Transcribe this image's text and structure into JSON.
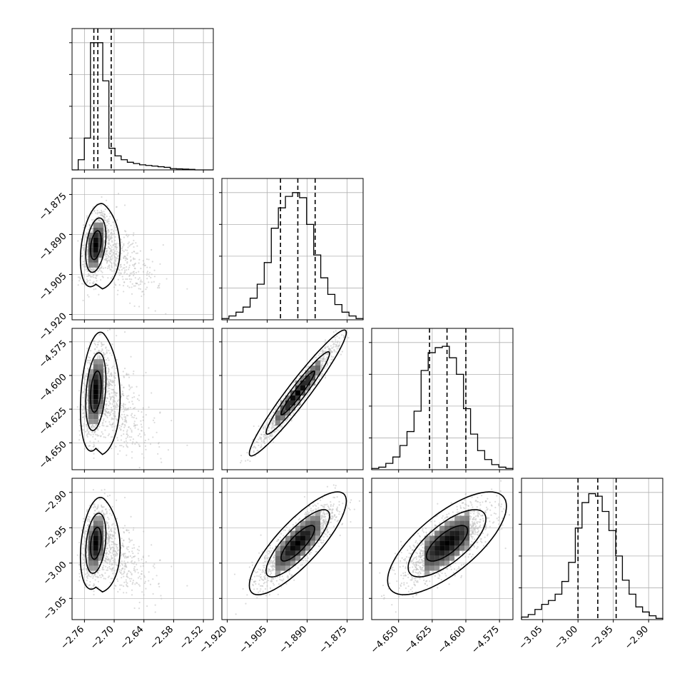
{
  "chart_data": {
    "type": "corner",
    "parameters": [
      {
        "range": [
          -2.785,
          -2.5
        ],
        "ticks": [
          -2.76,
          -2.7,
          -2.64,
          -2.58,
          -2.52
        ],
        "tick_labels": [
          "−2.76",
          "−2.70",
          "−2.64",
          "−2.58",
          "−2.52"
        ],
        "quantiles": [
          -2.741,
          -2.733,
          -2.706
        ],
        "hist_max": 4
      },
      {
        "range": [
          -1.922,
          -1.869
        ],
        "ticks": [
          -1.92,
          -1.905,
          -1.89,
          -1.875
        ],
        "tick_labels": [
          "−1.920",
          "−1.905",
          "−1.890",
          "−1.875"
        ],
        "quantiles": [
          -1.9,
          -1.8935,
          -1.887
        ],
        "hist_max": 4
      },
      {
        "range": [
          -4.67,
          -4.565
        ],
        "ticks": [
          -4.65,
          -4.625,
          -4.6,
          -4.575
        ],
        "tick_labels": [
          "−4.650",
          "−4.625",
          "−4.600",
          "−4.575"
        ],
        "quantiles": [
          -4.627,
          -4.614,
          -4.6
        ],
        "hist_max": 4
      },
      {
        "range": [
          -3.08,
          -2.88
        ],
        "ticks": [
          -3.05,
          -3.0,
          -2.95,
          -2.9
        ],
        "tick_labels": [
          "−3.05",
          "−3.00",
          "−2.95",
          "−2.90"
        ],
        "quantiles": [
          -3.0,
          -2.972,
          -2.946
        ],
        "hist_max": 4
      }
    ],
    "histograms": [
      {
        "counts": [
          0,
          0.08,
          0.25,
          1.0,
          1.0,
          0.7,
          0.17,
          0.11,
          0.08,
          0.06,
          0.05,
          0.04,
          0.035,
          0.03,
          0.025,
          0.02,
          0.01,
          0.008,
          0.006,
          0.004,
          0,
          0,
          0
        ]
      },
      {
        "counts": [
          0.01,
          0.03,
          0.06,
          0.1,
          0.17,
          0.28,
          0.45,
          0.72,
          0.88,
          0.97,
          1.0,
          0.96,
          0.75,
          0.51,
          0.33,
          0.2,
          0.12,
          0.06,
          0.03,
          0.01
        ]
      },
      {
        "counts": [
          0.01,
          0.02,
          0.05,
          0.1,
          0.19,
          0.3,
          0.46,
          0.78,
          0.92,
          0.96,
          0.97,
          0.88,
          0.75,
          0.48,
          0.28,
          0.15,
          0.08,
          0.04,
          0.02,
          0.01
        ]
      },
      {
        "counts": [
          0.02,
          0.04,
          0.08,
          0.12,
          0.15,
          0.2,
          0.3,
          0.45,
          0.72,
          0.92,
          0.99,
          0.97,
          0.85,
          0.7,
          0.5,
          0.31,
          0.2,
          0.1,
          0.06,
          0.03,
          0.01
        ]
      }
    ],
    "pair_panels": [
      {
        "row": 1,
        "col": 0,
        "center": [
          -2.737,
          -1.894
        ],
        "spread": [
          0.012,
          0.006
        ],
        "corr": 0.35,
        "tail": [
          0.055,
          -0.012
        ]
      },
      {
        "row": 2,
        "col": 0,
        "center": [
          -2.737,
          -4.612
        ],
        "spread": [
          0.012,
          0.017
        ],
        "corr": 0.3,
        "tail": [
          0.055,
          -0.03
        ]
      },
      {
        "row": 2,
        "col": 1,
        "center": [
          -1.8935,
          -4.613
        ],
        "spread": [
          0.007,
          0.018
        ],
        "corr": 0.96,
        "tail": null
      },
      {
        "row": 3,
        "col": 0,
        "center": [
          -2.737,
          -2.972
        ],
        "spread": [
          0.012,
          0.025
        ],
        "corr": 0.3,
        "tail": [
          0.055,
          -0.045
        ]
      },
      {
        "row": 3,
        "col": 1,
        "center": [
          -1.8935,
          -2.972
        ],
        "spread": [
          0.007,
          0.028
        ],
        "corr": 0.82,
        "tail": null
      },
      {
        "row": 3,
        "col": 2,
        "center": [
          -4.614,
          -2.972
        ],
        "spread": [
          0.017,
          0.028
        ],
        "corr": 0.72,
        "tail": null
      }
    ],
    "grid": true,
    "colors": {
      "scatter": "#bdbdbd",
      "contour": "#000000",
      "quantile": "#000000",
      "grid": "#b0b0b0"
    }
  }
}
